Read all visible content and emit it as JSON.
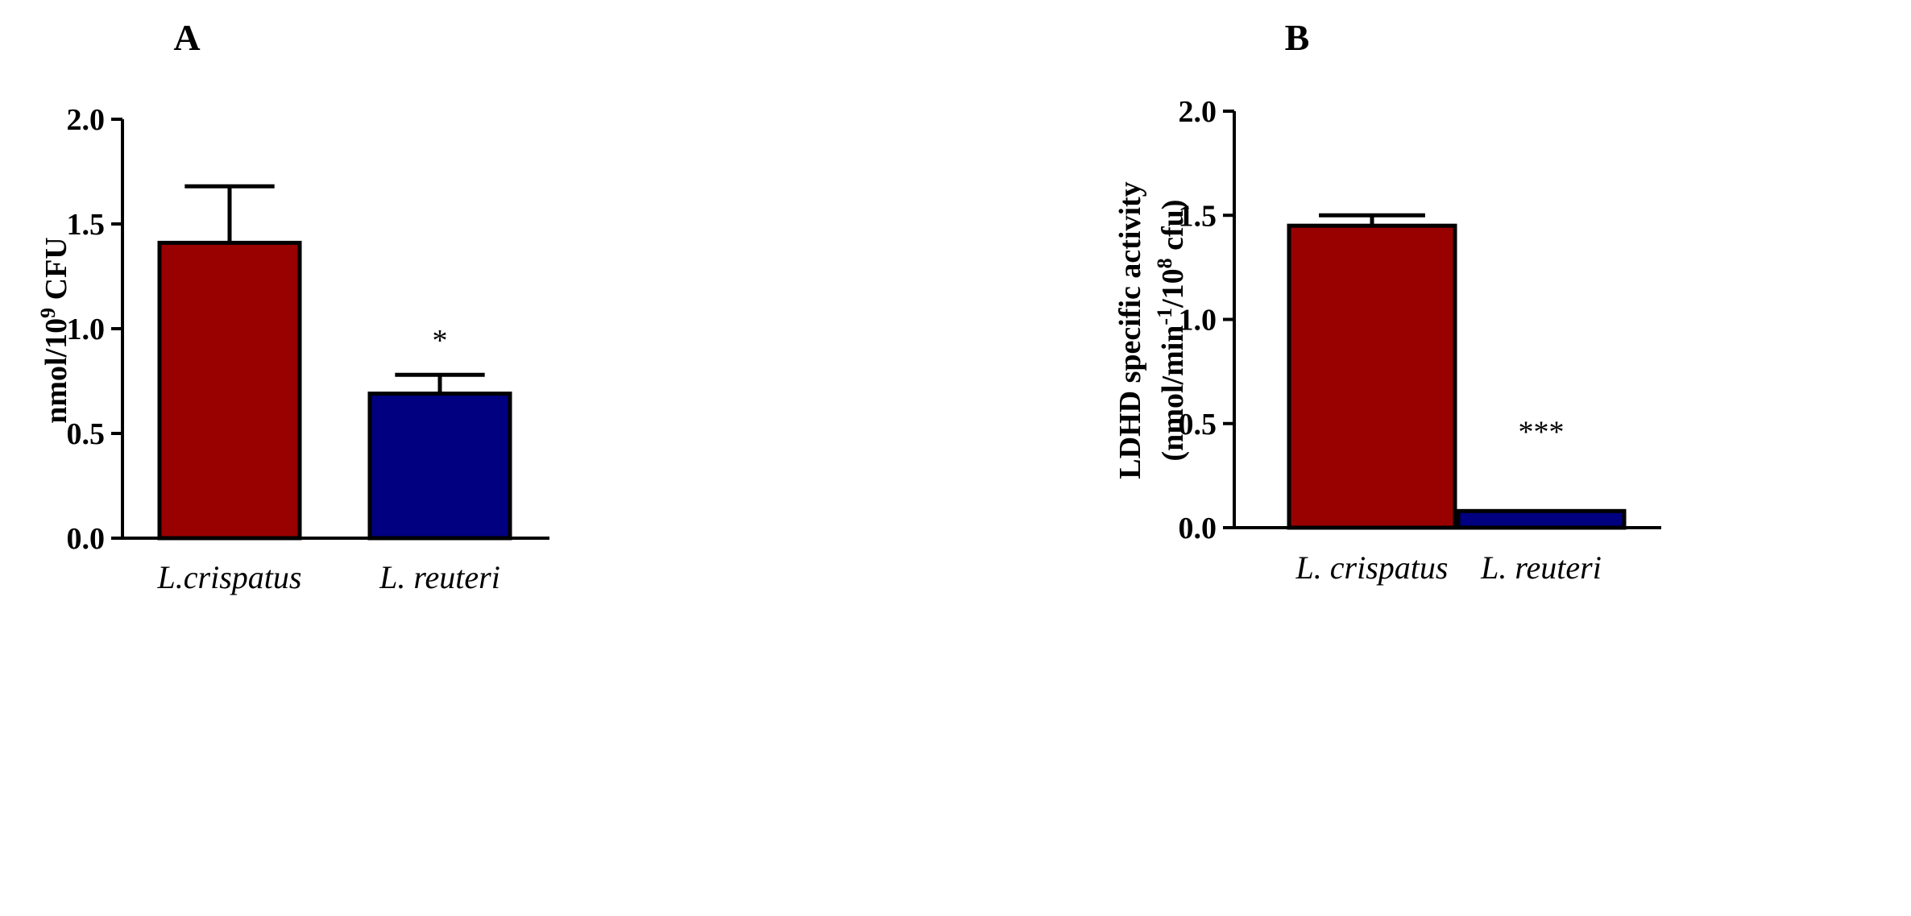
{
  "figure_title": "",
  "chart_data": [
    {
      "type": "bar",
      "panel": "A",
      "title": "",
      "xlabel": "",
      "ylabel": {
        "base": "nmol/10",
        "sup": "9",
        "rest": " CFU"
      },
      "ylim": [
        0,
        2.0
      ],
      "yticks": [
        0.0,
        0.5,
        1.0,
        1.5,
        2.0
      ],
      "ytick_labels": [
        "0.0",
        "0.5",
        "1.0",
        "1.5",
        "2.0"
      ],
      "categories": [
        "L.crispatus",
        "L. reuteri"
      ],
      "values": [
        1.41,
        0.69
      ],
      "errors": [
        0.27,
        0.09
      ],
      "significance": [
        "",
        "*"
      ],
      "colors": [
        "#990000",
        "#000080"
      ]
    },
    {
      "type": "bar",
      "panel": "B",
      "title": "",
      "xlabel": "",
      "ylabel": {
        "line1": "LDHD specific activity",
        "line2_base": "(nmol/min",
        "line2_sup1": "-1",
        "line2_mid": "/10",
        "line2_sup2": "8",
        "line2_rest": " cfu)"
      },
      "ylim": [
        0,
        2.0
      ],
      "yticks": [
        0.0,
        0.5,
        1.0,
        1.5,
        2.0
      ],
      "ytick_labels": [
        "0.0",
        "0.5",
        "1.0",
        "1.5",
        "2.0"
      ],
      "categories": [
        "L. crispatus",
        "L. reuteri"
      ],
      "values": [
        1.45,
        0.08
      ],
      "errors": [
        0.05,
        0.0
      ],
      "significance": [
        "",
        "***"
      ],
      "colors": [
        "#990000",
        "#000080"
      ]
    }
  ]
}
